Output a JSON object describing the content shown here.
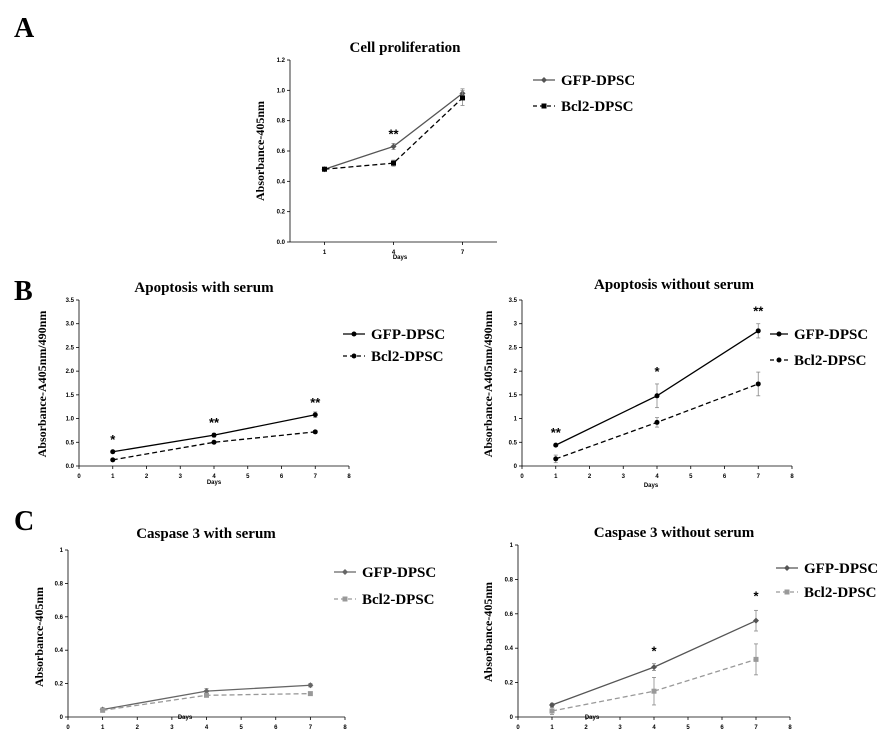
{
  "panels": [
    {
      "letter": "A"
    },
    {
      "letter": "B"
    },
    {
      "letter": "C"
    }
  ],
  "chart_data": [
    {
      "id": "A",
      "type": "line",
      "title": "Cell proliferation",
      "xlabel": "Days",
      "ylabel": "Absorbance-405nm",
      "x_mode": "categorical",
      "categories": [
        "1",
        "4",
        "7"
      ],
      "ylim": [
        0,
        1.2
      ],
      "yticks": [
        0.0,
        0.2,
        0.4,
        0.6,
        0.8,
        1.0,
        1.2
      ],
      "ytick_labels": [
        "0.0",
        "0.2",
        "0.4",
        "0.6",
        "0.8",
        "1.0",
        "1.2"
      ],
      "grid": false,
      "legend_position": "right",
      "series": [
        {
          "name": "GFP-DPSC",
          "x": [
            1,
            2,
            3
          ],
          "values": [
            0.48,
            0.63,
            0.98
          ],
          "errors": [
            0.01,
            0.02,
            0.03
          ],
          "dashed": false,
          "color": "#555555",
          "marker": "diamond"
        },
        {
          "name": "Bcl2-DPSC",
          "x": [
            1,
            2,
            3
          ],
          "values": [
            0.48,
            0.52,
            0.95
          ],
          "errors": [
            0.01,
            0.02,
            0.05
          ],
          "dashed": true,
          "color": "#000000",
          "marker": "square"
        }
      ],
      "annotations": [
        {
          "x": 2,
          "y": 0.63,
          "text": "**"
        }
      ]
    },
    {
      "id": "B1",
      "type": "line",
      "title": "Apoptosis with serum",
      "xlabel": "Days",
      "ylabel": "Absorbance-A405nm/490nm",
      "x_mode": "numeric",
      "xlim": [
        0,
        8
      ],
      "xticks": [
        0,
        1,
        2,
        3,
        4,
        5,
        6,
        7,
        8
      ],
      "ylim": [
        0,
        3.5
      ],
      "yticks": [
        0,
        0.5,
        1,
        1.5,
        2,
        2.5,
        3,
        3.5
      ],
      "ytick_labels": [
        "0.0",
        "0.5",
        "1.0",
        "1.5",
        "2.0",
        "2.5",
        "3.0",
        "3.5"
      ],
      "grid": false,
      "legend_position": "right",
      "series": [
        {
          "name": "GFP-DPSC",
          "x": [
            1,
            4,
            7
          ],
          "values": [
            0.3,
            0.65,
            1.08
          ],
          "errors": [
            0.03,
            0.04,
            0.06
          ],
          "dashed": false,
          "color": "#000000",
          "marker": "circle"
        },
        {
          "name": "Bcl2-DPSC",
          "x": [
            1,
            4,
            7
          ],
          "values": [
            0.13,
            0.5,
            0.72
          ],
          "errors": [
            0.02,
            0.03,
            0.03
          ],
          "dashed": true,
          "color": "#000000",
          "marker": "circle"
        }
      ],
      "annotations": [
        {
          "x": 1,
          "y": 0.3,
          "text": "*"
        },
        {
          "x": 4,
          "y": 0.65,
          "text": "**"
        },
        {
          "x": 7,
          "y": 1.08,
          "text": "**"
        }
      ]
    },
    {
      "id": "B2",
      "type": "line",
      "title": "Apoptosis without serum",
      "xlabel": "Days",
      "ylabel": "Absorbance-A405nm/490nm",
      "x_mode": "numeric",
      "xlim": [
        0,
        8
      ],
      "xticks": [
        0,
        1,
        2,
        3,
        4,
        5,
        6,
        7,
        8
      ],
      "ylim": [
        0,
        3.5
      ],
      "yticks": [
        0,
        0.5,
        1,
        1.5,
        2,
        2.5,
        3,
        3.5
      ],
      "ytick_labels": [
        "0",
        "0.5",
        "1",
        "1.5",
        "2",
        "2.5",
        "3",
        "3.5"
      ],
      "grid": false,
      "legend_position": "right",
      "series": [
        {
          "name": "GFP-DPSC",
          "x": [
            1,
            4,
            7
          ],
          "values": [
            0.44,
            1.48,
            2.85
          ],
          "errors": [
            0.03,
            0.25,
            0.15
          ],
          "dashed": false,
          "color": "#000000",
          "marker": "circle"
        },
        {
          "name": "Bcl2-DPSC",
          "x": [
            1,
            4,
            7
          ],
          "values": [
            0.15,
            0.92,
            1.73
          ],
          "errors": [
            0.08,
            0.1,
            0.25
          ],
          "dashed": true,
          "color": "#000000",
          "marker": "circle"
        }
      ],
      "annotations": [
        {
          "x": 1,
          "y": 0.44,
          "text": "**"
        },
        {
          "x": 4,
          "y": 1.73,
          "text": "*"
        },
        {
          "x": 7,
          "y": 3.0,
          "text": "**"
        }
      ]
    },
    {
      "id": "C1",
      "type": "line",
      "title": "Caspase 3 with serum",
      "xlabel": "Days",
      "ylabel": "Absorbance-405nm",
      "x_mode": "numeric",
      "xlim": [
        0,
        8
      ],
      "xticks": [
        0,
        1,
        2,
        3,
        4,
        5,
        6,
        7,
        8
      ],
      "ylim": [
        0,
        1
      ],
      "yticks": [
        0,
        0.2,
        0.4,
        0.6,
        0.8,
        1
      ],
      "ytick_labels": [
        "0",
        "0.2",
        "0.4",
        "0.6",
        "0.8",
        "1"
      ],
      "grid": false,
      "legend_position": "right",
      "series": [
        {
          "name": "GFP-DPSC",
          "x": [
            1,
            4,
            7
          ],
          "values": [
            0.045,
            0.155,
            0.19
          ],
          "errors": [
            0.01,
            0.015,
            0.01
          ],
          "dashed": false,
          "color": "#666666",
          "marker": "diamond"
        },
        {
          "name": "Bcl2-DPSC",
          "x": [
            1,
            4,
            7
          ],
          "values": [
            0.04,
            0.13,
            0.14
          ],
          "errors": [
            0.01,
            0.01,
            0.01
          ],
          "dashed": true,
          "color": "#999999",
          "marker": "square"
        }
      ],
      "annotations": []
    },
    {
      "id": "C2",
      "type": "line",
      "title": "Caspase 3 without serum",
      "xlabel": "Days",
      "ylabel": "Absorbance-405nm",
      "x_mode": "numeric",
      "xlim": [
        0,
        8
      ],
      "xticks": [
        0,
        1,
        2,
        3,
        4,
        5,
        6,
        7,
        8
      ],
      "ylim": [
        0,
        1
      ],
      "yticks": [
        0,
        0.2,
        0.4,
        0.6,
        0.8,
        1
      ],
      "ytick_labels": [
        "0",
        "0.2",
        "0.4",
        "0.6",
        "0.8",
        "1"
      ],
      "grid": false,
      "legend_position": "right",
      "series": [
        {
          "name": "GFP-DPSC",
          "x": [
            1,
            4,
            7
          ],
          "values": [
            0.07,
            0.29,
            0.56
          ],
          "errors": [
            0.01,
            0.02,
            0.06
          ],
          "dashed": false,
          "color": "#555555",
          "marker": "diamond"
        },
        {
          "name": "Bcl2-DPSC",
          "x": [
            1,
            4,
            7
          ],
          "values": [
            0.035,
            0.15,
            0.335
          ],
          "errors": [
            0.02,
            0.08,
            0.09
          ],
          "dashed": true,
          "color": "#999999",
          "marker": "square"
        }
      ],
      "annotations": [
        {
          "x": 4,
          "y": 0.31,
          "text": "*"
        },
        {
          "x": 7,
          "y": 0.63,
          "text": "*"
        }
      ]
    }
  ]
}
